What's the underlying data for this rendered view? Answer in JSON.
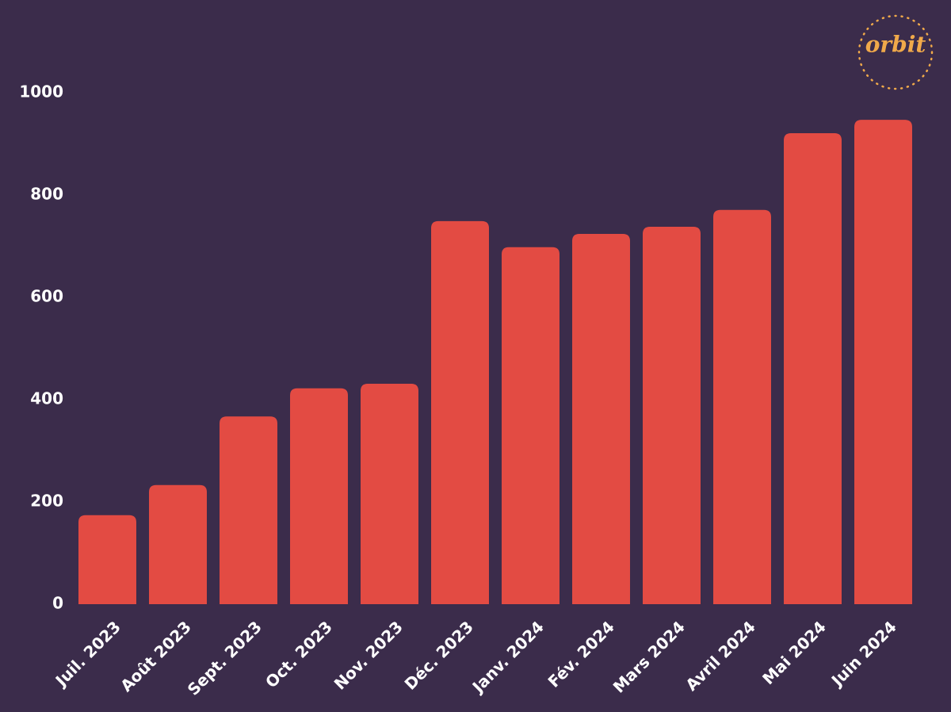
{
  "chart_data": {
    "type": "bar",
    "logo": "orbit",
    "categories": [
      "Juil. 2023",
      "Août 2023",
      "Sept. 2023",
      "Oct. 2023",
      "Nov. 2023",
      "Déc. 2023",
      "Janv. 2024",
      "Fév. 2024",
      "Mars 2024",
      "Avril 2024",
      "Mai 2024",
      "Juin 2024"
    ],
    "values": [
      174,
      233,
      367,
      422,
      431,
      749,
      698,
      724,
      738,
      771,
      921,
      947
    ],
    "color": "#e34b43",
    "ylim": [
      0,
      1000
    ],
    "yticks": [
      0,
      200,
      400,
      600,
      800,
      1000
    ],
    "grid": false
  }
}
